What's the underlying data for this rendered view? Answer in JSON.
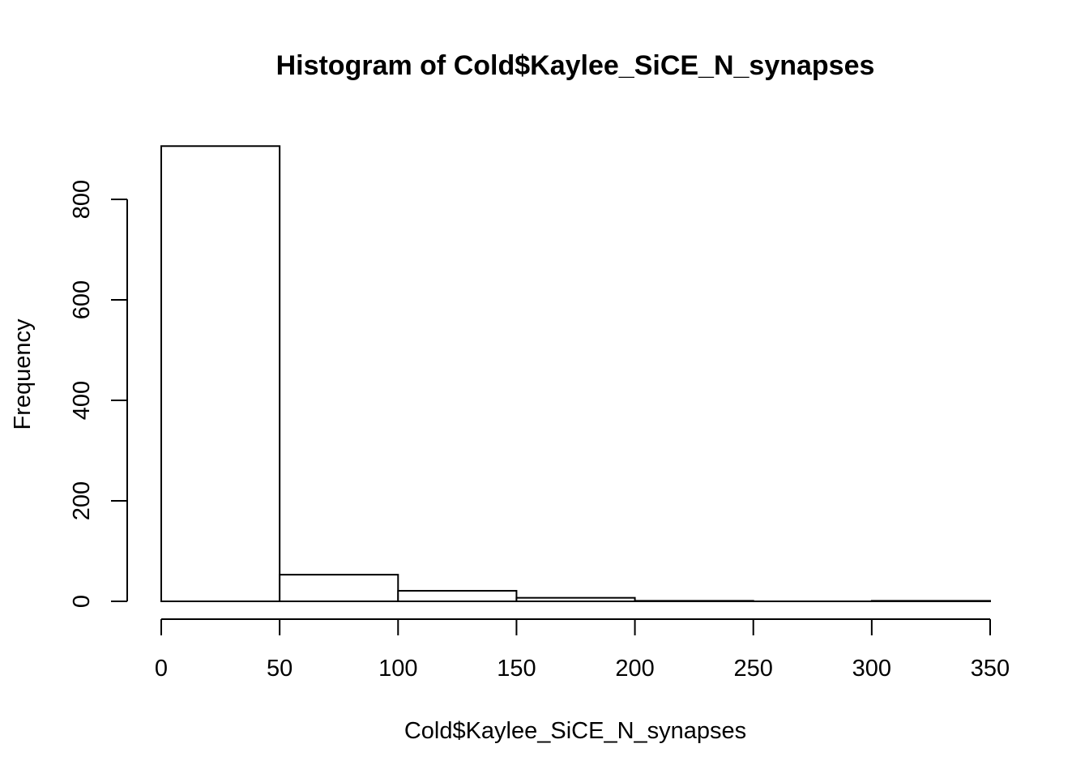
{
  "chart_data": {
    "type": "bar",
    "subtype": "histogram",
    "title": "Histogram of Cold$Kaylee_SiCE_N_synapses",
    "xlabel": "Cold$Kaylee_SiCE_N_synapses",
    "ylabel": "Frequency",
    "bins": [
      {
        "start": 0,
        "end": 50,
        "count": 906
      },
      {
        "start": 50,
        "end": 100,
        "count": 53
      },
      {
        "start": 100,
        "end": 150,
        "count": 21
      },
      {
        "start": 150,
        "end": 200,
        "count": 7
      },
      {
        "start": 200,
        "end": 250,
        "count": 1
      },
      {
        "start": 250,
        "end": 300,
        "count": 0
      },
      {
        "start": 300,
        "end": 350,
        "count": 1
      }
    ],
    "xlim": [
      0,
      350
    ],
    "ylim": [
      0,
      906
    ],
    "x_ticks": [
      0,
      50,
      100,
      150,
      200,
      250,
      300,
      350
    ],
    "y_ticks": [
      0,
      200,
      400,
      600,
      800
    ],
    "grid": false,
    "legend": "none",
    "colors": {
      "bar_fill": "#ffffff",
      "bar_stroke": "#000000"
    }
  }
}
